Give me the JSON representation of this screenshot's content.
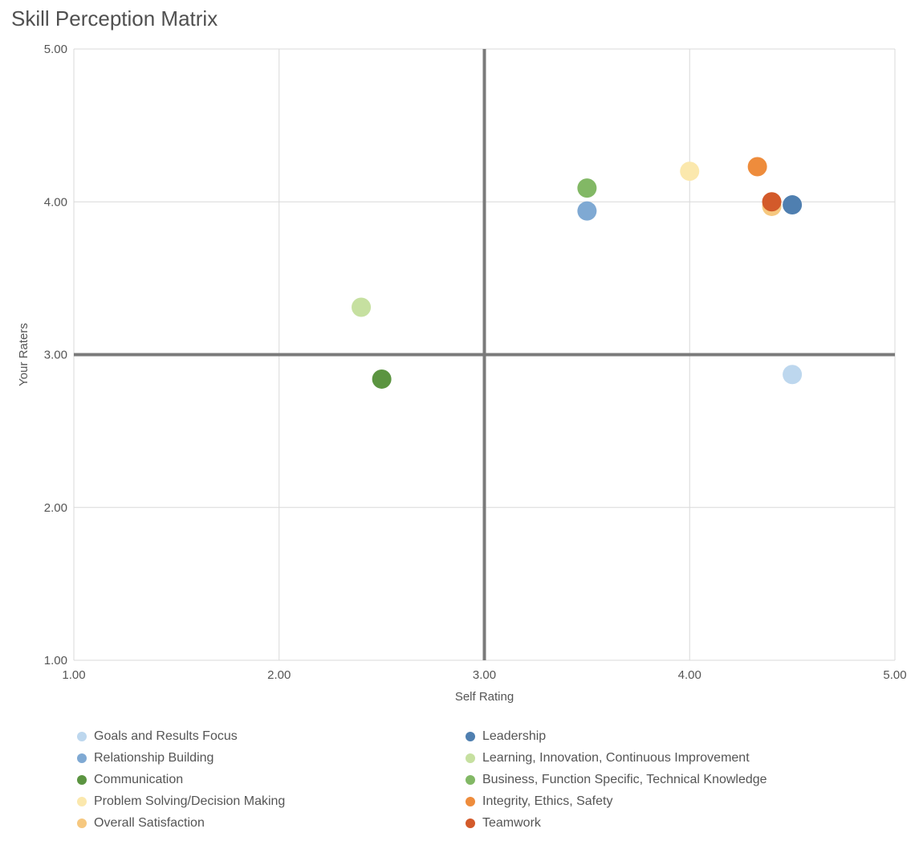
{
  "chart_data": {
    "type": "scatter",
    "title": "Skill Perception Matrix",
    "xlabel": "Self Rating",
    "ylabel": "Your Raters",
    "xlim": [
      1,
      5
    ],
    "ylim": [
      1,
      5
    ],
    "x_ticks": [
      "1.00",
      "2.00",
      "3.00",
      "4.00",
      "5.00"
    ],
    "y_ticks": [
      "1.00",
      "2.00",
      "3.00",
      "4.00",
      "5.00"
    ],
    "x_divider": 3,
    "y_divider": 3,
    "grid": true,
    "legend_position": "bottom",
    "series": [
      {
        "name": "Goals and Results Focus",
        "color": "#bdd7ee",
        "x": 4.5,
        "y": 2.87
      },
      {
        "name": "Leadership",
        "color": "#4f7fb0",
        "x": 4.5,
        "y": 3.98
      },
      {
        "name": "Relationship Building",
        "color": "#7fa9d3",
        "x": 3.5,
        "y": 3.94
      },
      {
        "name": "Learning, Innovation, Continuous Improvement",
        "color": "#c6e0a0",
        "x": 2.4,
        "y": 3.31
      },
      {
        "name": "Communication",
        "color": "#5b9440",
        "x": 2.5,
        "y": 2.84
      },
      {
        "name": "Business, Function Specific, Technical Knowledge",
        "color": "#82b865",
        "x": 3.5,
        "y": 4.09
      },
      {
        "name": "Problem Solving/Decision Making",
        "color": "#fbe8ad",
        "x": 4.0,
        "y": 4.2
      },
      {
        "name": "Integrity, Ethics, Safety",
        "color": "#ee8c3c",
        "x": 4.33,
        "y": 4.23
      },
      {
        "name": "Overall Satisfaction",
        "color": "#f6c87f",
        "x": 4.4,
        "y": 3.97
      },
      {
        "name": "Teamwork",
        "color": "#d35a2a",
        "x": 4.4,
        "y": 4.0
      }
    ]
  }
}
